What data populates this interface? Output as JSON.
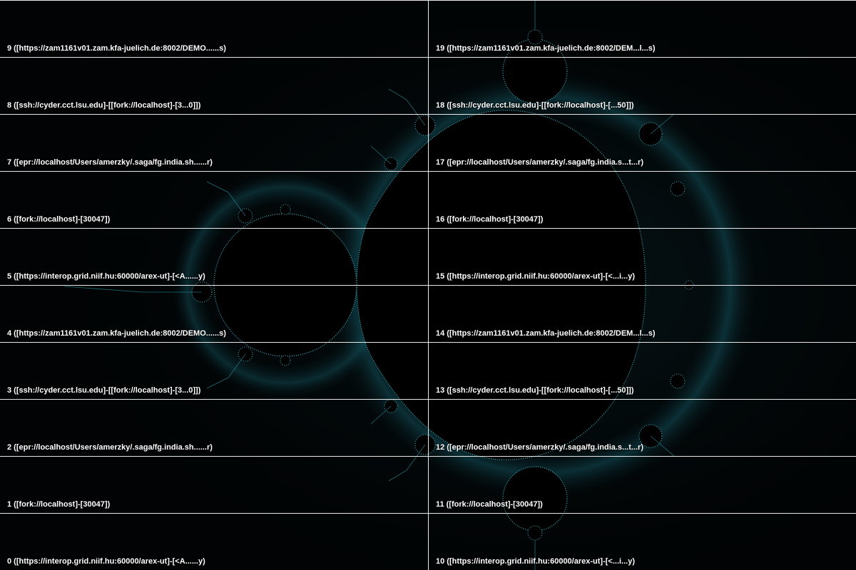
{
  "palette": {
    "background": "#010304",
    "fractal_edge": "#3fb7c4",
    "fractal_glow": "#0d3b44",
    "grid_line": "#e8e8e8",
    "label": "#ffffff"
  },
  "tiles": {
    "left": [
      {
        "index": "9",
        "label": "9 ([https://zam1161v01.zam.kfa-juelich.de:8002/DEMO......s)"
      },
      {
        "index": "8",
        "label": "8 ([ssh://cyder.cct.lsu.edu]-[[fork://localhost]-[3...0]])"
      },
      {
        "index": "7",
        "label": "7 ([epr://localhost/Users/amerzky/.saga/fg.india.sh......r)"
      },
      {
        "index": "6",
        "label": "6 ([fork://localhost]-[30047])"
      },
      {
        "index": "5",
        "label": "5 ([https://interop.grid.niif.hu:60000/arex-ut]-[<A......y)"
      },
      {
        "index": "4",
        "label": "4 ([https://zam1161v01.zam.kfa-juelich.de:8002/DEMO......s)"
      },
      {
        "index": "3",
        "label": "3 ([ssh://cyder.cct.lsu.edu]-[[fork://localhost]-[3...0]])"
      },
      {
        "index": "2",
        "label": "2 ([epr://localhost/Users/amerzky/.saga/fg.india.sh......r)"
      },
      {
        "index": "1",
        "label": "1 ([fork://localhost]-[30047])"
      },
      {
        "index": "0",
        "label": "0 ([https://interop.grid.niif.hu:60000/arex-ut]-[<A......y)"
      }
    ],
    "right": [
      {
        "index": "19",
        "label": "19 ([https://zam1161v01.zam.kfa-juelich.de:8002/DEM...l...s)"
      },
      {
        "index": "18",
        "label": "18 ([ssh://cyder.cct.lsu.edu]-[[fork://localhost]-[...50]])"
      },
      {
        "index": "17",
        "label": "17 ([epr://localhost/Users/amerzky/.saga/fg.india.s...t...r)"
      },
      {
        "index": "16",
        "label": "16 ([fork://localhost]-[30047])"
      },
      {
        "index": "15",
        "label": "15 ([https://interop.grid.niif.hu:60000/arex-ut]-[<...i...y)"
      },
      {
        "index": "14",
        "label": "14 ([https://zam1161v01.zam.kfa-juelich.de:8002/DEM...l...s)"
      },
      {
        "index": "13",
        "label": "13 ([ssh://cyder.cct.lsu.edu]-[[fork://localhost]-[...50]])"
      },
      {
        "index": "12",
        "label": "12 ([epr://localhost/Users/amerzky/.saga/fg.india.s...t...r)"
      },
      {
        "index": "11",
        "label": "11 ([fork://localhost]-[30047])"
      },
      {
        "index": "10",
        "label": "10 ([https://interop.grid.niif.hu:60000/arex-ut]-[<...i...y)"
      }
    ]
  }
}
